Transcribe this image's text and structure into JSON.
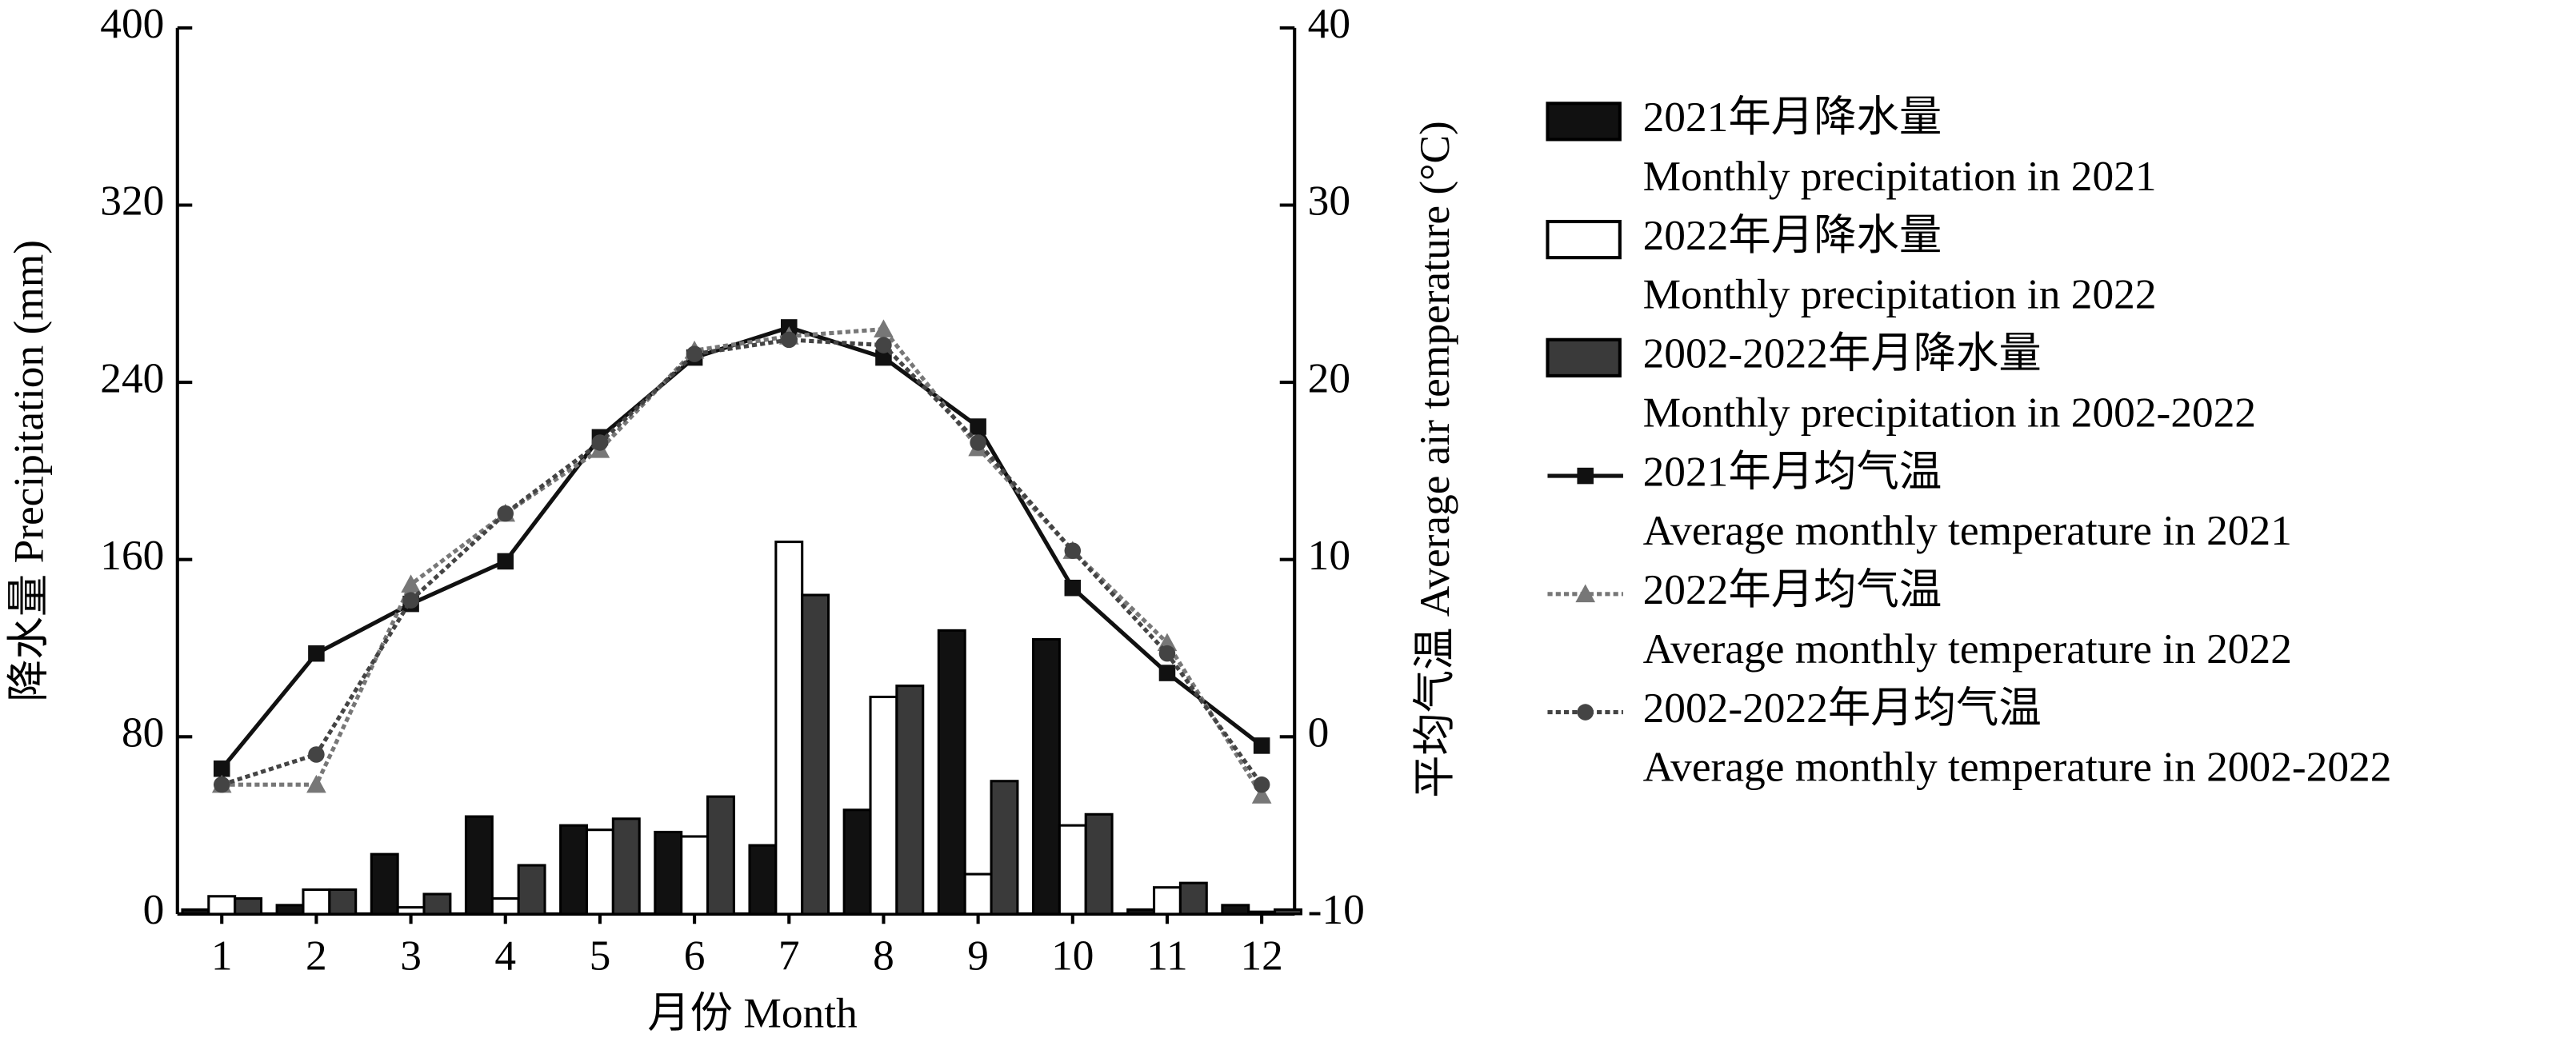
{
  "chart_data": {
    "type": "bar_line",
    "xlabel": "月份 Month",
    "ylabel": "降水量 Precipitation (mm)",
    "y2label": "平均气温 Average air temperature (°C)",
    "categories": [
      "1",
      "2",
      "3",
      "4",
      "5",
      "6",
      "7",
      "8",
      "9",
      "10",
      "11",
      "12"
    ],
    "ylim": [
      0,
      400
    ],
    "yticks": [
      0,
      80,
      160,
      240,
      320,
      400
    ],
    "y2lim": [
      -10,
      40
    ],
    "y2ticks": [
      -10,
      0,
      10,
      20,
      30,
      40
    ],
    "series": [
      {
        "name": "2021年月降水量",
        "name_en": "Monthly precipitation in 2021",
        "type": "bar",
        "color": "#111111",
        "values": [
          2,
          4,
          27,
          44,
          40,
          37,
          31,
          47,
          128,
          124,
          2,
          4
        ]
      },
      {
        "name": "2022年月降水量",
        "name_en": "Monthly precipitation in 2022",
        "type": "bar",
        "color": "#ffffff",
        "values": [
          8,
          11,
          3,
          7,
          38,
          35,
          168,
          98,
          18,
          40,
          12,
          1
        ]
      },
      {
        "name": "2002-2022年月降水量",
        "name_en": "Monthly precipitation in 2002-2022",
        "type": "bar",
        "color": "#3a3a3a",
        "values": [
          7,
          11,
          9,
          22,
          43,
          53,
          144,
          103,
          60,
          45,
          14,
          2
        ]
      },
      {
        "name": "2021年月均气温",
        "name_en": "Average monthly temperature in 2021",
        "type": "line",
        "axis": "y2",
        "color": "#111111",
        "marker": "square",
        "dash": false,
        "values": [
          -1.8,
          4.7,
          7.5,
          9.9,
          16.9,
          21.4,
          23.1,
          21.4,
          17.5,
          8.4,
          3.6,
          -0.5
        ]
      },
      {
        "name": "2022年月均气温",
        "name_en": "Average monthly temperature in 2022",
        "type": "line",
        "axis": "y2",
        "color": "#777777",
        "marker": "triangle",
        "dash": true,
        "values": [
          -2.7,
          -2.7,
          8.6,
          12.6,
          16.2,
          21.8,
          22.6,
          23.0,
          16.3,
          10.5,
          5.3,
          -3.3
        ]
      },
      {
        "name": "2002-2022年月均气温",
        "name_en": "Average monthly temperature in 2002-2022",
        "type": "line",
        "axis": "y2",
        "color": "#444444",
        "marker": "circle",
        "dash": true,
        "values": [
          -2.7,
          -1.0,
          7.7,
          12.6,
          16.6,
          21.6,
          22.4,
          22.1,
          16.6,
          10.5,
          4.7,
          -2.7
        ]
      }
    ]
  }
}
